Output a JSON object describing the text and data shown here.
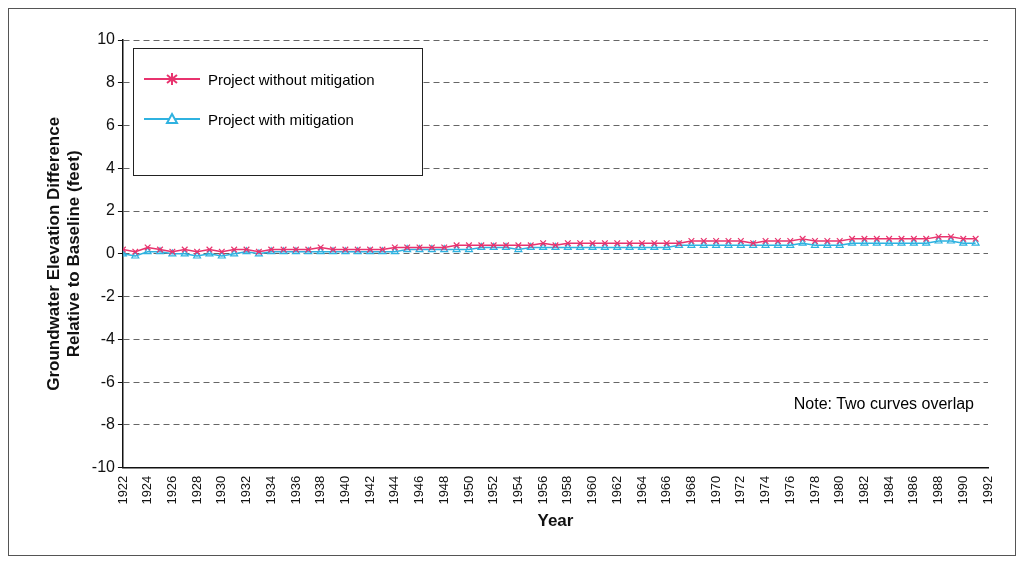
{
  "chart_data": {
    "type": "line",
    "xlabel": "Year",
    "ylabel": "Groundwater Elevation Difference Relative to Baseline (feet)",
    "x": [
      1922,
      1923,
      1924,
      1925,
      1926,
      1927,
      1928,
      1929,
      1930,
      1931,
      1932,
      1933,
      1934,
      1935,
      1936,
      1937,
      1938,
      1939,
      1940,
      1941,
      1942,
      1943,
      1944,
      1945,
      1946,
      1947,
      1948,
      1949,
      1950,
      1951,
      1952,
      1953,
      1954,
      1955,
      1956,
      1957,
      1958,
      1959,
      1960,
      1961,
      1962,
      1963,
      1964,
      1965,
      1966,
      1967,
      1968,
      1969,
      1970,
      1971,
      1972,
      1973,
      1974,
      1975,
      1976,
      1977,
      1978,
      1979,
      1980,
      1981,
      1982,
      1983,
      1984,
      1985,
      1986,
      1987,
      1988,
      1989,
      1990,
      1991
    ],
    "series": [
      {
        "name": "Project without mitigation",
        "color": "#e8336e",
        "marker": "cross",
        "values": [
          0.2,
          0.1,
          0.3,
          0.2,
          0.1,
          0.2,
          0.1,
          0.2,
          0.1,
          0.2,
          0.2,
          0.1,
          0.2,
          0.2,
          0.2,
          0.2,
          0.3,
          0.2,
          0.2,
          0.2,
          0.2,
          0.2,
          0.3,
          0.3,
          0.3,
          0.3,
          0.3,
          0.4,
          0.4,
          0.4,
          0.4,
          0.4,
          0.4,
          0.4,
          0.5,
          0.4,
          0.5,
          0.5,
          0.5,
          0.5,
          0.5,
          0.5,
          0.5,
          0.5,
          0.5,
          0.5,
          0.6,
          0.6,
          0.6,
          0.6,
          0.6,
          0.5,
          0.6,
          0.6,
          0.6,
          0.7,
          0.6,
          0.6,
          0.6,
          0.7,
          0.7,
          0.7,
          0.7,
          0.7,
          0.7,
          0.7,
          0.8,
          0.8,
          0.7,
          0.7
        ]
      },
      {
        "name": "Project with mitigation",
        "color": "#2fb2e0",
        "marker": "triangle",
        "values": [
          0.0,
          -0.1,
          0.1,
          0.1,
          0.0,
          0.0,
          -0.1,
          0.0,
          -0.1,
          0.0,
          0.1,
          0.0,
          0.1,
          0.1,
          0.1,
          0.1,
          0.1,
          0.1,
          0.1,
          0.1,
          0.1,
          0.1,
          0.1,
          0.2,
          0.2,
          0.2,
          0.2,
          0.2,
          0.2,
          0.3,
          0.3,
          0.3,
          0.2,
          0.3,
          0.3,
          0.3,
          0.3,
          0.3,
          0.3,
          0.3,
          0.3,
          0.3,
          0.3,
          0.3,
          0.3,
          0.4,
          0.4,
          0.4,
          0.4,
          0.4,
          0.4,
          0.4,
          0.4,
          0.4,
          0.4,
          0.5,
          0.4,
          0.4,
          0.4,
          0.5,
          0.5,
          0.5,
          0.5,
          0.5,
          0.5,
          0.5,
          0.6,
          0.6,
          0.5,
          0.5
        ]
      }
    ],
    "xlim": [
      1922,
      1992
    ],
    "xticks": [
      1922,
      1924,
      1926,
      1928,
      1930,
      1932,
      1934,
      1936,
      1938,
      1940,
      1942,
      1944,
      1946,
      1948,
      1950,
      1952,
      1954,
      1956,
      1958,
      1960,
      1962,
      1964,
      1966,
      1968,
      1970,
      1972,
      1974,
      1976,
      1978,
      1980,
      1982,
      1984,
      1986,
      1988,
      1990,
      1992
    ],
    "ylim": [
      -10,
      10
    ],
    "yticks": [
      -10,
      -8,
      -6,
      -4,
      -2,
      0,
      2,
      4,
      6,
      8,
      10
    ],
    "grid": "y",
    "legend": "top left",
    "line_style": "solid",
    "annotations": [
      "Note: Two curves overlap"
    ]
  }
}
